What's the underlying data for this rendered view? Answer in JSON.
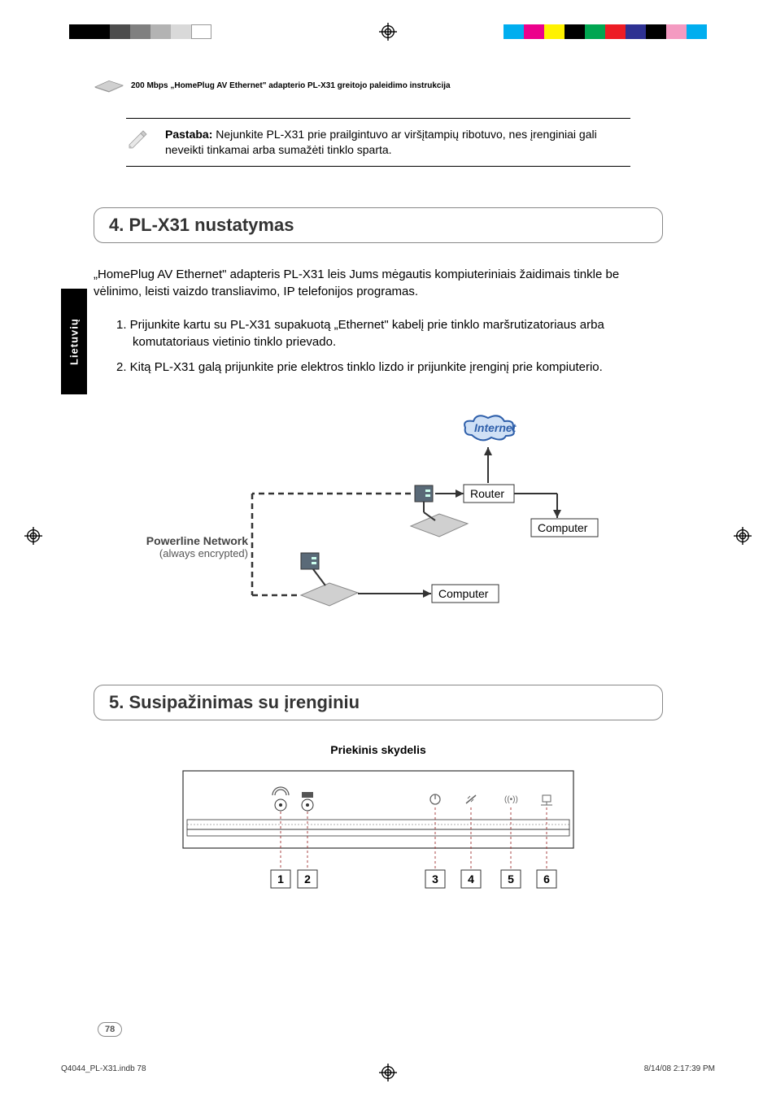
{
  "print_marks": {
    "left_swatches": [
      "#000000",
      "#000000",
      "#4d4d4d",
      "#808080",
      "#b3b3b3",
      "#d9d9d9",
      "#ffffff"
    ],
    "right_swatches": [
      "#00aeef",
      "#ec008c",
      "#fff200",
      "#000000",
      "#00a651",
      "#ed1c24",
      "#2e3192",
      "#000000",
      "#f49ac1",
      "#00aeef"
    ],
    "registration_color": "#000000"
  },
  "header": {
    "title": "200 Mbps „HomePlug AV Ethernet\" adapterio PL-X31 greitojo paleidimo instrukcija"
  },
  "note": {
    "label": "Pastaba:",
    "text": "Nejunkite PL-X31 prie prailgintuvo ar viršįtampių ribotuvo, nes įrenginiai gali neveikti tinkamai arba sumažėti tinklo sparta."
  },
  "section4": {
    "heading": "4. PL-X31 nustatymas",
    "intro": "„HomePlug AV Ethernet\" adapteris PL-X31 leis Jums mėgautis kompiuteriniais žaidimais tinkle be vėlinimo, leisti vaizdo transliavimo, IP telefonijos programas.",
    "steps": [
      "1. Prijunkite kartu su PL-X31 supakuotą „Ethernet\" kabelį prie tinklo maršrutizatoriaus arba komutatoriaus vietinio tinklo prievado.",
      "2. Kitą PL-X31 galą prijunkite prie elektros tinklo lizdo ir prijunkite įrenginį prie kompiuterio."
    ]
  },
  "diagram": {
    "internet": "Internet",
    "router": "Router",
    "computer": "Computer",
    "powerline_l1": "Powerline Network",
    "powerline_l2": "(always encrypted)",
    "cloud_stroke": "#2e5faa",
    "cloud_fill": "#cfe0f5",
    "text_color": "#2e5faa",
    "line_color": "#333333"
  },
  "section5": {
    "heading": "5. Susipažinimas su įrenginiu",
    "panel_title": "Priekinis skydelis",
    "callouts": [
      "1",
      "2",
      "3",
      "4",
      "5",
      "6"
    ]
  },
  "sidebar": {
    "label": "Lietuvių"
  },
  "footer": {
    "page_number": "78",
    "file_ref": "Q4044_PL-X31.indb   78",
    "timestamp": "8/14/08   2:17:39 PM"
  }
}
